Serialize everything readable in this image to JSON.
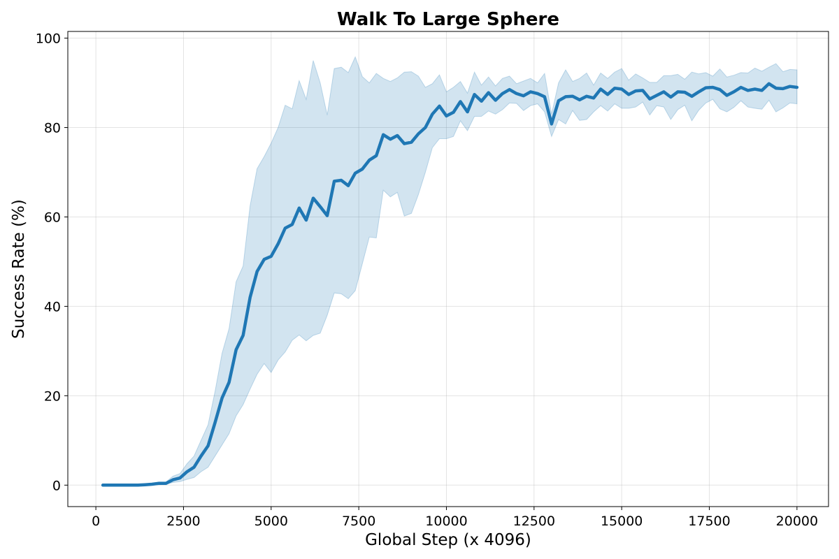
{
  "chart_data": {
    "type": "line",
    "title": "Walk To Large Sphere",
    "xlabel": "Global Step (x 4096)",
    "ylabel": "Success Rate (%)",
    "xlim": [
      -800,
      20900
    ],
    "ylim": [
      -4.8,
      101.5
    ],
    "xticks": [
      0,
      2500,
      5000,
      7500,
      10000,
      12500,
      15000,
      17500,
      20000
    ],
    "yticks": [
      0,
      20,
      40,
      60,
      80,
      100
    ],
    "grid": true,
    "colors": {
      "line": "#1f77b4",
      "band": "#1f77b4"
    },
    "series": [
      {
        "x": [
          200,
          400,
          600,
          800,
          1000,
          1200,
          1400,
          1600,
          1800,
          2000,
          2200,
          2400,
          2600,
          2800,
          3000,
          3200,
          3400,
          3600,
          3800,
          4000,
          4200,
          4400,
          4600,
          4800,
          5000,
          5200,
          5400,
          5600,
          5800,
          6000,
          6200,
          6400,
          6600,
          6800,
          7000,
          7200,
          7400,
          7600,
          7800,
          8000,
          8200,
          8400,
          8600,
          8800,
          9000,
          9200,
          9400,
          9600,
          9800,
          10000,
          10200,
          10400,
          10600,
          10800,
          11000,
          11200,
          11400,
          11600,
          11800,
          12000,
          12200,
          12400,
          12600,
          12800,
          13000,
          13200,
          13400,
          13600,
          13800,
          14000,
          14200,
          14400,
          14600,
          14800,
          15000,
          15200,
          15400,
          15600,
          15800,
          16000,
          16200,
          16400,
          16600,
          16800,
          17000,
          17200,
          17400,
          17600,
          17800,
          18000,
          18200,
          18400,
          18600,
          18800,
          19000,
          19200,
          19400,
          19600,
          19800,
          20000
        ],
        "mean": [
          0.0,
          0.0,
          0.0,
          0.0,
          0.0,
          0.0,
          0.1,
          0.2,
          0.4,
          0.4,
          1.2,
          1.6,
          3.0,
          4.0,
          6.5,
          8.8,
          14.0,
          19.5,
          23.0,
          30.3,
          33.5,
          42.0,
          47.8,
          50.5,
          51.2,
          54.0,
          57.5,
          58.3,
          62.0,
          59.3,
          64.2,
          62.3,
          60.3,
          68.0,
          68.2,
          67.0,
          69.8,
          70.7,
          72.7,
          73.7,
          78.4,
          77.4,
          78.2,
          76.4,
          76.7,
          78.6,
          80.0,
          83.0,
          84.8,
          82.6,
          83.4,
          85.8,
          83.5,
          87.4,
          85.9,
          87.8,
          86.1,
          87.6,
          88.5,
          87.6,
          87.1,
          88.0,
          87.6,
          86.9,
          80.8,
          86.0,
          86.9,
          87.0,
          86.2,
          87.0,
          86.6,
          88.6,
          87.4,
          88.8,
          88.6,
          87.4,
          88.2,
          88.3,
          86.4,
          87.2,
          88.0,
          86.8,
          88.0,
          87.9,
          87.0,
          88.0,
          88.9,
          89.0,
          88.5,
          87.2,
          88.0,
          89.0,
          88.3,
          88.6,
          88.3,
          89.8,
          88.8,
          88.7,
          89.2,
          89.0
        ],
        "lower": [
          0.0,
          0.0,
          0.0,
          0.0,
          0.0,
          0.0,
          0.0,
          0.0,
          0.1,
          0.2,
          0.6,
          0.8,
          1.3,
          1.7,
          3.0,
          4.0,
          6.5,
          9.0,
          11.5,
          15.5,
          18.0,
          21.5,
          24.8,
          27.2,
          25.2,
          28.0,
          29.8,
          32.4,
          33.6,
          32.3,
          33.5,
          34.0,
          38.0,
          43.0,
          42.8,
          41.7,
          43.5,
          49.5,
          55.5,
          55.3,
          66.0,
          64.5,
          65.5,
          60.2,
          60.8,
          65.0,
          70.0,
          75.5,
          77.5,
          77.5,
          78.0,
          81.5,
          79.3,
          82.5,
          82.5,
          83.7,
          83.0,
          84.0,
          85.5,
          85.4,
          83.8,
          84.9,
          85.3,
          83.5,
          78.0,
          81.8,
          80.8,
          83.8,
          81.6,
          81.8,
          83.5,
          84.9,
          83.7,
          85.3,
          84.3,
          84.3,
          84.6,
          85.7,
          82.8,
          84.9,
          84.6,
          81.8,
          84.0,
          85.0,
          81.5,
          83.9,
          85.5,
          86.3,
          84.2,
          83.5,
          84.5,
          86.0,
          84.6,
          84.3,
          84.1,
          86.1,
          83.5,
          84.4,
          85.5,
          85.3
        ],
        "upper": [
          0.0,
          0.0,
          0.0,
          0.0,
          0.0,
          0.0,
          0.2,
          0.4,
          0.7,
          0.7,
          2.0,
          2.6,
          4.8,
          6.5,
          10.0,
          13.5,
          21.0,
          29.5,
          35.0,
          45.5,
          49.0,
          62.5,
          70.8,
          73.5,
          76.5,
          80.0,
          85.0,
          84.2,
          90.5,
          86.3,
          95.0,
          90.0,
          82.8,
          93.2,
          93.5,
          92.3,
          95.8,
          91.4,
          90.0,
          92.1,
          91.0,
          90.3,
          91.1,
          92.4,
          92.5,
          91.5,
          89.0,
          89.8,
          91.8,
          88.0,
          89.0,
          90.3,
          87.7,
          92.4,
          89.5,
          91.3,
          89.3,
          91.0,
          91.5,
          89.8,
          90.4,
          91.0,
          90.0,
          92.1,
          83.0,
          90.0,
          92.9,
          90.3,
          91.0,
          92.2,
          89.5,
          92.2,
          91.0,
          92.4,
          93.2,
          90.6,
          92.0,
          91.1,
          90.1,
          90.1,
          91.6,
          91.6,
          91.9,
          90.8,
          92.4,
          92.0,
          92.3,
          91.5,
          93.1,
          91.3,
          91.7,
          92.3,
          92.2,
          93.3,
          92.6,
          93.5,
          94.3,
          92.5,
          93.0,
          92.9
        ]
      }
    ]
  }
}
